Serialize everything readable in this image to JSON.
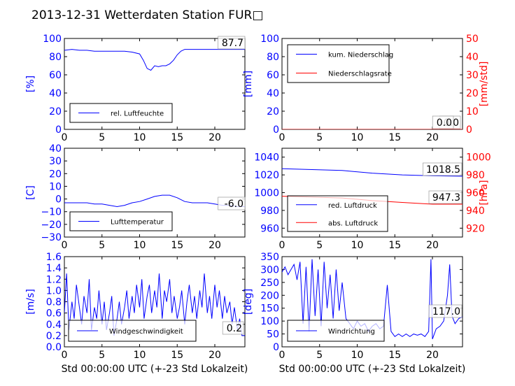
{
  "colors": {
    "blue": "#0000ff",
    "red": "#ff0000",
    "black": "#000000"
  },
  "title": "2013-12-31 Wetterdaten Station FUR□",
  "chart_data": [
    {
      "type": "line",
      "ylabel": "[%]",
      "xlim": [
        0,
        24
      ],
      "ylim": [
        0,
        100
      ],
      "xticks": [
        "0",
        "5",
        "10",
        "15",
        "20"
      ],
      "yticks": [
        "0",
        "20",
        "40",
        "60",
        "80",
        "100"
      ],
      "legend": {
        "placement": "lower-left",
        "entries": [
          "rel. Luftfeuchte"
        ]
      },
      "annotations": [
        "87.7"
      ],
      "series": [
        {
          "name": "rel. Luftfeuchte",
          "color": "#0000ff",
          "x": [
            0,
            1,
            2,
            3,
            4,
            5,
            6,
            7,
            8,
            9,
            10,
            10.5,
            11,
            11.5,
            12,
            12.5,
            13,
            13.5,
            14,
            14.5,
            15,
            15.5,
            16,
            17,
            18,
            19,
            20,
            21,
            22,
            23,
            24
          ],
          "y": [
            87,
            88,
            87,
            87,
            86,
            86,
            86,
            86,
            86,
            85,
            83,
            76,
            67,
            65,
            70,
            69,
            70,
            70,
            72,
            76,
            82,
            86,
            88,
            88,
            88,
            88,
            88,
            88,
            88,
            88,
            88
          ]
        }
      ]
    },
    {
      "type": "line",
      "ylabel": "[mm]",
      "y2label": "[mm/std]",
      "xlim": [
        0,
        24
      ],
      "ylim": [
        0,
        100
      ],
      "y2lim": [
        0,
        50
      ],
      "xticks": [
        "0",
        "5",
        "10",
        "15",
        "20"
      ],
      "yticks": [
        "0",
        "20",
        "40",
        "60",
        "80",
        "100"
      ],
      "y2ticks": [
        "0",
        "10",
        "20",
        "30",
        "40",
        "50"
      ],
      "legend": {
        "placement": "top-left",
        "entries": [
          "kum. Niederschlag",
          "Niederschlagsrate"
        ]
      },
      "annotations": [
        "0.0",
        "0.0"
      ],
      "series": [
        {
          "name": "kum. Niederschlag",
          "color": "#0000ff",
          "x": [
            0,
            24
          ],
          "y": [
            0,
            0
          ]
        },
        {
          "name": "Niederschlagsrate",
          "color": "#ff0000",
          "x": [
            0,
            24
          ],
          "y": [
            0,
            0
          ]
        }
      ]
    },
    {
      "type": "line",
      "ylabel": "[C]",
      "xlim": [
        0,
        24
      ],
      "ylim": [
        -30,
        40
      ],
      "xticks": [
        "0",
        "5",
        "10",
        "15",
        "20"
      ],
      "yticks": [
        "−30",
        "−20",
        "−10",
        "0",
        "10",
        "20",
        "30",
        "40"
      ],
      "legend": {
        "placement": "lower-left",
        "entries": [
          "Lufttemperatur"
        ]
      },
      "annotations": [
        "-6.0"
      ],
      "series": [
        {
          "name": "Lufttemperatur",
          "color": "#0000ff",
          "x": [
            0,
            1,
            2,
            3,
            4,
            5,
            6,
            7,
            8,
            9,
            10,
            11,
            12,
            13,
            14,
            15,
            16,
            17,
            18,
            19,
            20,
            21,
            22,
            23,
            24
          ],
          "y": [
            -3,
            -3,
            -3,
            -3,
            -4,
            -4,
            -5,
            -6,
            -5,
            -3,
            -2,
            0,
            2,
            3,
            3,
            1,
            -2,
            -3,
            -3,
            -3,
            -4,
            -5,
            -5,
            -6,
            -6
          ]
        }
      ]
    },
    {
      "type": "line",
      "ylabel": "",
      "y2label": "[hPa]",
      "xlim": [
        0,
        24
      ],
      "ylim": [
        950,
        1050
      ],
      "y2lim": [
        910,
        1010
      ],
      "xticks": [
        "0",
        "5",
        "10",
        "15",
        "20"
      ],
      "yticks": [
        "960",
        "980",
        "1000",
        "1020",
        "1040"
      ],
      "y2ticks": [
        "920",
        "940",
        "960",
        "980",
        "1000"
      ],
      "legend": {
        "placement": "lower-left",
        "entries": [
          "red. Luftdruck",
          "abs. Luftdruck"
        ]
      },
      "annotations": [
        "1018.5",
        "947.3"
      ],
      "series": [
        {
          "name": "red. Luftdruck",
          "color": "#0000ff",
          "x": [
            0,
            4,
            8,
            12,
            16,
            20,
            24
          ],
          "y": [
            1027,
            1026,
            1025,
            1022,
            1020,
            1019,
            1018.5
          ]
        },
        {
          "name": "abs. Luftdruck",
          "color": "#ff0000",
          "x": [
            0,
            4,
            8,
            12,
            16,
            20,
            24
          ],
          "y": [
            996,
            995,
            994,
            991,
            989,
            987,
            987
          ]
        }
      ]
    },
    {
      "type": "line",
      "ylabel": "[m/s]",
      "xlabel": "Std 00:00:00 UTC (+-23 Std Lokalzeit)",
      "xlim": [
        0,
        24
      ],
      "ylim": [
        0,
        1.6
      ],
      "xticks": [
        "0",
        "5",
        "10",
        "15",
        "20"
      ],
      "yticks": [
        "0.0",
        "0.2",
        "0.4",
        "0.6",
        "0.8",
        "1.0",
        "1.2",
        "1.4",
        "1.6"
      ],
      "legend": {
        "placement": "lower-center",
        "entries": [
          "Windgeschwindigkeit"
        ]
      },
      "annotations": [
        "0.2"
      ],
      "series": [
        {
          "name": "Windgeschwindigkeit",
          "color": "#0000ff",
          "x": [
            0,
            0.3,
            0.6,
            1,
            1.3,
            1.6,
            2,
            2.3,
            2.6,
            3,
            3.3,
            3.6,
            4,
            4.3,
            4.6,
            5,
            5.3,
            5.6,
            6,
            6.3,
            6.6,
            7,
            7.3,
            7.6,
            8,
            8.3,
            8.6,
            9,
            9.3,
            9.6,
            10,
            10.3,
            10.6,
            11,
            11.3,
            11.6,
            12,
            12.3,
            12.6,
            13,
            13.3,
            13.6,
            14,
            14.3,
            14.6,
            15,
            15.3,
            15.6,
            16,
            16.3,
            16.6,
            17,
            17.3,
            17.6,
            18,
            18.3,
            18.6,
            19,
            19.3,
            19.6,
            20,
            20.3,
            20.6,
            21,
            21.3,
            21.6,
            22,
            22.3,
            22.6,
            23,
            23.3,
            23.6,
            24
          ],
          "y": [
            0.6,
            1.3,
            0.3,
            0.8,
            0.5,
            1.1,
            0.7,
            0.4,
            0.9,
            0.6,
            1.2,
            0.3,
            0.7,
            0.5,
            1.0,
            0.4,
            0.8,
            0.3,
            0.6,
            0.9,
            0.2,
            0.5,
            0.8,
            0.4,
            0.7,
            1.0,
            0.5,
            0.9,
            0.6,
            1.1,
            0.7,
            1.2,
            0.5,
            0.9,
            1.1,
            0.6,
            1.0,
            0.7,
            1.3,
            0.5,
            1.0,
            0.8,
            1.2,
            0.6,
            0.9,
            0.5,
            0.7,
            1.0,
            0.4,
            0.8,
            1.1,
            0.6,
            0.9,
            0.5,
            1.0,
            0.7,
            1.3,
            0.6,
            0.9,
            0.5,
            1.1,
            0.7,
            1.0,
            0.5,
            0.9,
            0.6,
            0.8,
            0.4,
            0.7,
            0.3,
            0.5,
            0.2,
            0.2
          ]
        }
      ]
    },
    {
      "type": "line",
      "ylabel": "[deg]",
      "xlabel": "Std 00:00:00 UTC (+-23 Std Lokalzeit)",
      "xlim": [
        0,
        24
      ],
      "ylim": [
        0,
        350
      ],
      "xticks": [
        "0",
        "5",
        "10",
        "15",
        "20"
      ],
      "yticks": [
        "0",
        "50",
        "100",
        "150",
        "200",
        "250",
        "300",
        "350"
      ],
      "legend": {
        "placement": "lower-left",
        "entries": [
          "Windrichtung"
        ]
      },
      "annotations": [
        "117.0"
      ],
      "series": [
        {
          "name": "Windrichtung",
          "color": "#0000ff",
          "x": [
            0,
            0.4,
            0.8,
            1.2,
            1.6,
            2,
            2.4,
            2.8,
            3.2,
            3.6,
            4,
            4.4,
            4.8,
            5.2,
            5.6,
            6,
            6.4,
            6.8,
            7.2,
            7.6,
            8,
            8.5,
            9,
            9.5,
            10,
            10.5,
            11,
            11.5,
            12,
            12.5,
            13,
            13.5,
            14,
            14.5,
            15,
            15.5,
            16,
            16.5,
            17,
            17.5,
            18,
            18.5,
            19,
            19.5,
            19.8,
            20,
            20.5,
            21,
            21.5,
            22,
            22.3,
            22.6,
            23,
            23.5,
            24
          ],
          "y": [
            290,
            310,
            280,
            300,
            320,
            260,
            330,
            90,
            310,
            60,
            340,
            120,
            300,
            80,
            330,
            150,
            280,
            110,
            300,
            140,
            250,
            110,
            90,
            70,
            100,
            80,
            90,
            60,
            80,
            90,
            70,
            80,
            240,
            60,
            40,
            50,
            40,
            50,
            40,
            50,
            45,
            50,
            40,
            60,
            340,
            30,
            70,
            80,
            100,
            200,
            320,
            120,
            90,
            110,
            117
          ]
        }
      ]
    }
  ]
}
